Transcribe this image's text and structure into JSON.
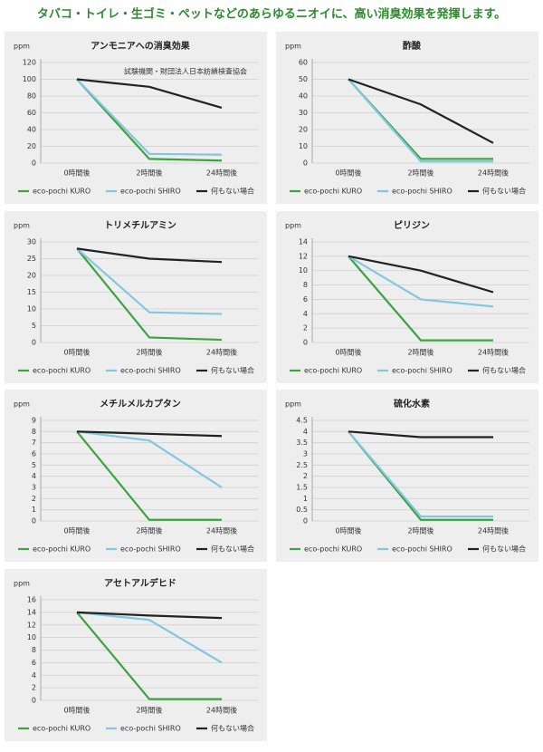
{
  "title": "タバコ・トイレ・生ゴミ・ペットなどのあらゆるニオイに、高い消臭効果を発揮します。",
  "chart_data": [
    {
      "type": "line",
      "title": "アンモニアへの消臭効果",
      "y_label": "ppm",
      "annotation": "試験機関・財団法人日本紡績検査協会",
      "categories": [
        "0時間後",
        "2時間後",
        "24時間後"
      ],
      "ylim": [
        0,
        120
      ],
      "yticks": [
        0,
        20,
        40,
        60,
        80,
        100,
        120
      ],
      "grid": true,
      "series": [
        {
          "name": "eco-pochi KURO",
          "color": "#3ca33f",
          "values": [
            100,
            5,
            3
          ]
        },
        {
          "name": "eco-pochi SHIRO",
          "color": "#82c7e2",
          "values": [
            100,
            11,
            10
          ]
        },
        {
          "name": "何もない場合",
          "color": "#222222",
          "values": [
            100,
            91,
            66
          ]
        }
      ]
    },
    {
      "type": "line",
      "title": "酢酸",
      "y_label": "ppm",
      "categories": [
        "0時間後",
        "2時間後",
        "24時間後"
      ],
      "ylim": [
        0,
        60
      ],
      "yticks": [
        0,
        10,
        20,
        30,
        40,
        50,
        60
      ],
      "grid": true,
      "series": [
        {
          "name": "eco-pochi KURO",
          "color": "#3ca33f",
          "values": [
            50,
            2.5,
            2.5
          ]
        },
        {
          "name": "eco-pochi SHIRO",
          "color": "#82c7e2",
          "values": [
            50,
            1,
            1
          ]
        },
        {
          "name": "何もない場合",
          "color": "#222222",
          "values": [
            50,
            35,
            12
          ]
        }
      ]
    },
    {
      "type": "line",
      "title": "トリメチルアミン",
      "y_label": "ppm",
      "categories": [
        "0時間後",
        "2時間後",
        "24時間後"
      ],
      "ylim": [
        0,
        30
      ],
      "yticks": [
        0,
        5,
        10,
        15,
        20,
        25,
        30
      ],
      "grid": true,
      "series": [
        {
          "name": "eco-pochi KURO",
          "color": "#3ca33f",
          "values": [
            28,
            1.5,
            0.8
          ]
        },
        {
          "name": "eco-pochi SHIRO",
          "color": "#82c7e2",
          "values": [
            28,
            9,
            8.5
          ]
        },
        {
          "name": "何もない場合",
          "color": "#222222",
          "values": [
            28,
            25,
            24
          ]
        }
      ]
    },
    {
      "type": "line",
      "title": "ピリジン",
      "y_label": "ppm",
      "categories": [
        "0時間後",
        "2時間後",
        "24時間後"
      ],
      "ylim": [
        0,
        14
      ],
      "yticks": [
        0,
        2,
        4,
        6,
        8,
        10,
        12,
        14
      ],
      "grid": true,
      "series": [
        {
          "name": "eco-pochi KURO",
          "color": "#3ca33f",
          "values": [
            12,
            0.3,
            0.3
          ]
        },
        {
          "name": "eco-pochi SHIRO",
          "color": "#82c7e2",
          "values": [
            12,
            6,
            5
          ]
        },
        {
          "name": "何もない場合",
          "color": "#222222",
          "values": [
            12,
            10,
            7
          ]
        }
      ]
    },
    {
      "type": "line",
      "title": "メチルメルカプタン",
      "y_label": "ppm",
      "categories": [
        "0時間後",
        "2時間後",
        "24時間後"
      ],
      "ylim": [
        0,
        9
      ],
      "yticks": [
        0,
        1,
        2,
        3,
        4,
        5,
        6,
        7,
        8,
        9
      ],
      "grid": true,
      "series": [
        {
          "name": "eco-pochi KURO",
          "color": "#3ca33f",
          "values": [
            8,
            0.1,
            0.1
          ]
        },
        {
          "name": "eco-pochi SHIRO",
          "color": "#82c7e2",
          "values": [
            8,
            7.2,
            3
          ]
        },
        {
          "name": "何もない場合",
          "color": "#222222",
          "values": [
            8,
            7.8,
            7.6
          ]
        }
      ]
    },
    {
      "type": "line",
      "title": "硫化水素",
      "y_label": "ppm",
      "categories": [
        "0時間後",
        "2時間後",
        "24時間後"
      ],
      "ylim": [
        0,
        4.5
      ],
      "yticks": [
        0,
        0.5,
        1,
        1.5,
        2,
        2.5,
        3,
        3.5,
        4,
        4.5
      ],
      "grid": true,
      "series": [
        {
          "name": "eco-pochi KURO",
          "color": "#3ca33f",
          "values": [
            4,
            0.05,
            0.05
          ]
        },
        {
          "name": "eco-pochi SHIRO",
          "color": "#82c7e2",
          "values": [
            4,
            0.2,
            0.2
          ]
        },
        {
          "name": "何もない場合",
          "color": "#222222",
          "values": [
            4,
            3.75,
            3.75
          ]
        }
      ]
    },
    {
      "type": "line",
      "title": "アセトアルデヒド",
      "y_label": "ppm",
      "categories": [
        "0時間後",
        "2時間後",
        "24時間後"
      ],
      "ylim": [
        0,
        16
      ],
      "yticks": [
        0,
        2,
        4,
        6,
        8,
        10,
        12,
        14,
        16
      ],
      "grid": true,
      "series": [
        {
          "name": "eco-pochi KURO",
          "color": "#3ca33f",
          "values": [
            14,
            0.2,
            0.2
          ]
        },
        {
          "name": "eco-pochi SHIRO",
          "color": "#82c7e2",
          "values": [
            14,
            12.8,
            6
          ]
        },
        {
          "name": "何もない場合",
          "color": "#222222",
          "values": [
            14,
            13.5,
            13.1
          ]
        }
      ]
    }
  ]
}
